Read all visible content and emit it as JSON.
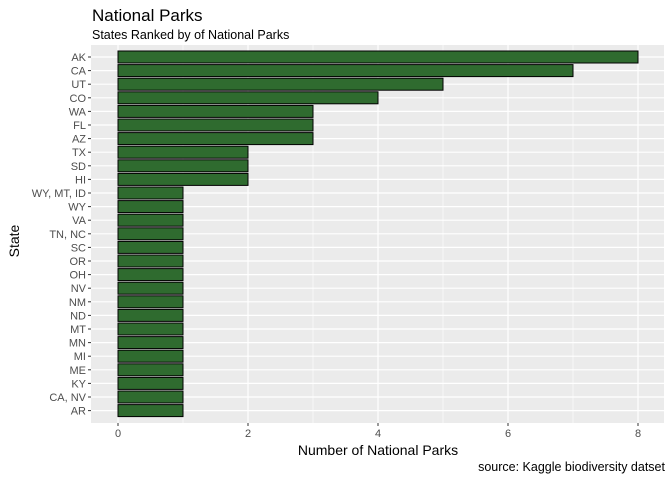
{
  "chart_data": {
    "type": "bar",
    "orientation": "horizontal",
    "title": "National Parks",
    "subtitle": "States Ranked by of National Parks",
    "xlabel": "Number of National Parks",
    "ylabel": "State",
    "caption": "source: Kaggle biodiversity datset",
    "xlim": [
      0,
      8
    ],
    "x_ticks": [
      0,
      2,
      4,
      6,
      8
    ],
    "grid": true,
    "bar_color": "#2f6b2f",
    "bar_outline": "#000000",
    "panel_background": "#ebebeb",
    "categories": [
      "AK",
      "CA",
      "UT",
      "CO",
      "WA",
      "FL",
      "AZ",
      "TX",
      "SD",
      "HI",
      "WY, MT, ID",
      "WY",
      "VA",
      "TN, NC",
      "SC",
      "OR",
      "OH",
      "NV",
      "NM",
      "ND",
      "MT",
      "MN",
      "MI",
      "ME",
      "KY",
      "CA, NV",
      "AR"
    ],
    "values": [
      8,
      7,
      5,
      4,
      3,
      3,
      3,
      2,
      2,
      2,
      1,
      1,
      1,
      1,
      1,
      1,
      1,
      1,
      1,
      1,
      1,
      1,
      1,
      1,
      1,
      1,
      1
    ]
  }
}
